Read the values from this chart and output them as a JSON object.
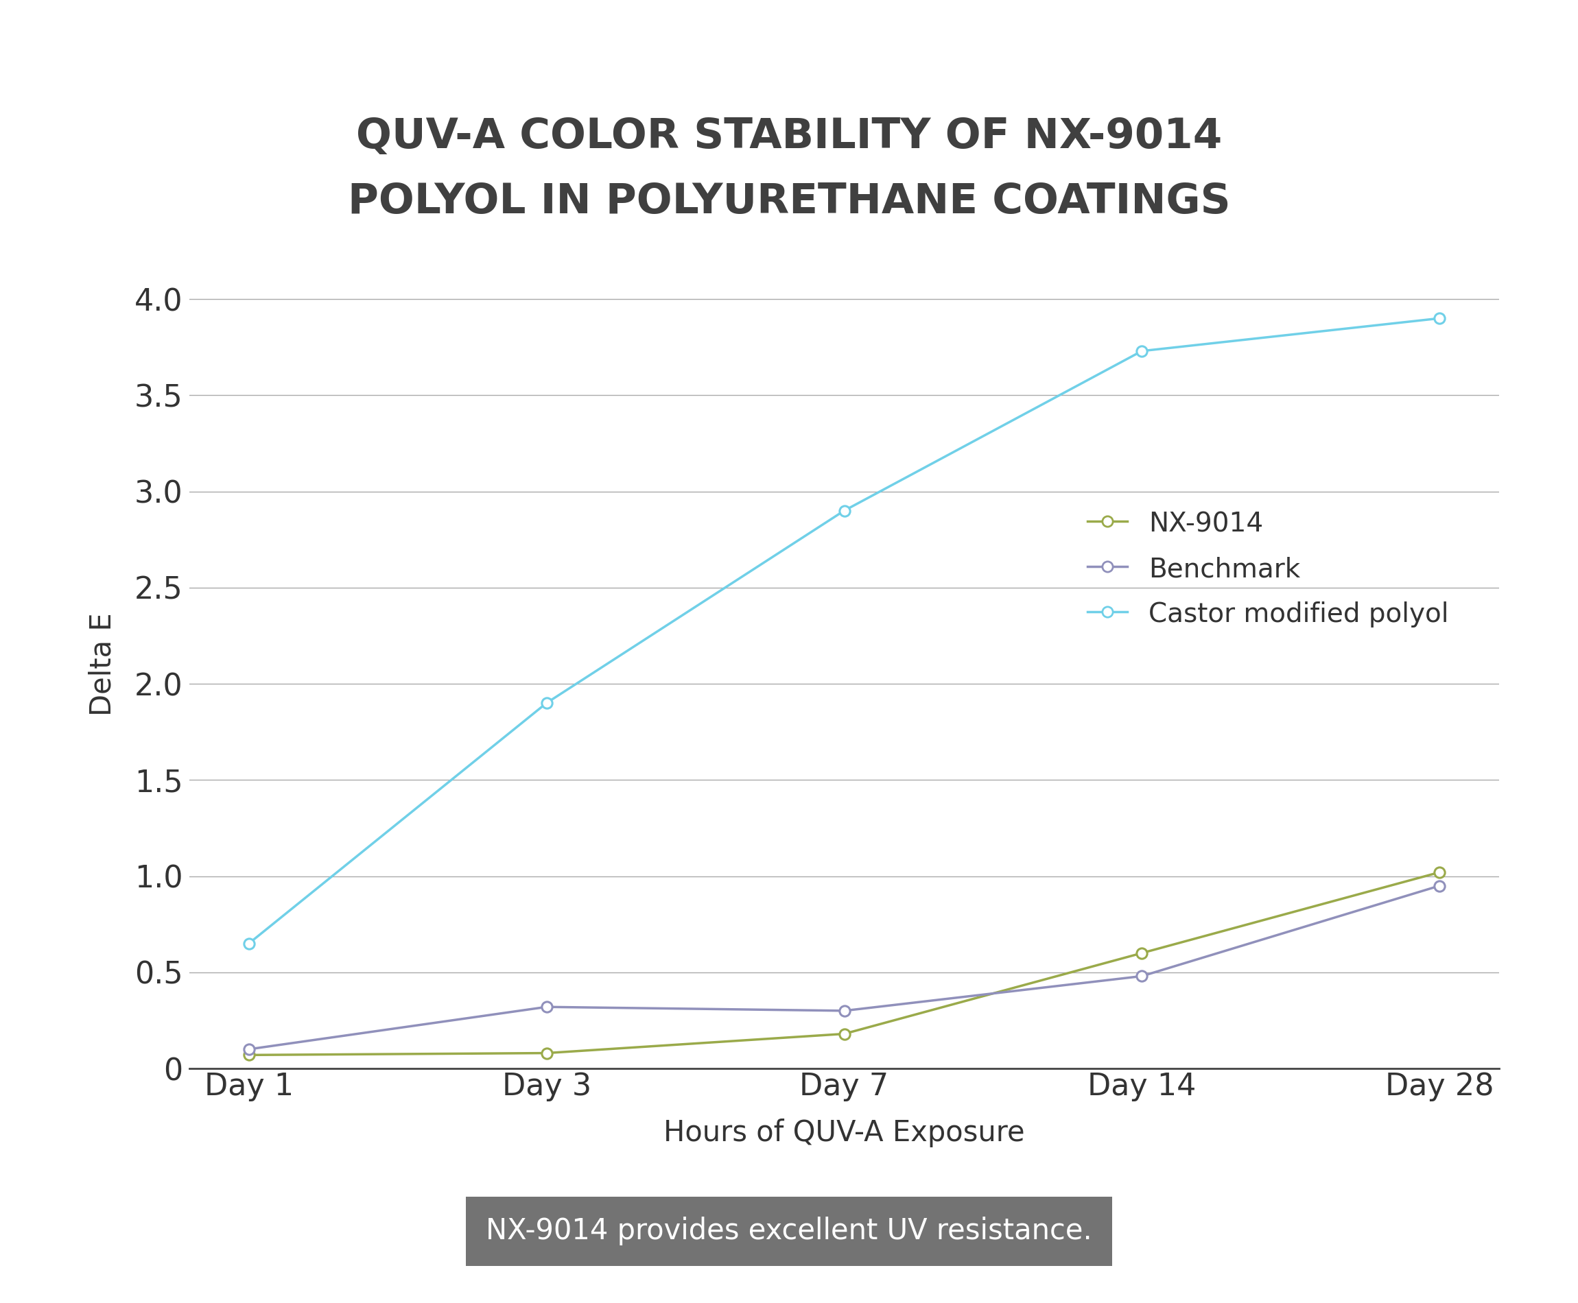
{
  "title_line1": "QUV-A COLOR STABILITY OF NX-9014",
  "title_line2": "POLYOL IN POLYURETHANE COATINGS",
  "xlabel": "Hours of QUV-A Exposure",
  "ylabel": "Delta E",
  "categories": [
    "Day 1",
    "Day 3",
    "Day 7",
    "Day 14",
    "Day 28"
  ],
  "series": {
    "NX-9014": {
      "values": [
        0.07,
        0.08,
        0.18,
        0.6,
        1.02
      ],
      "color": "#9aaa4a",
      "marker_color": "#9aaa4a"
    },
    "Benchmark": {
      "values": [
        0.1,
        0.32,
        0.3,
        0.48,
        0.95
      ],
      "color": "#9090bb",
      "marker_color": "#9090bb"
    },
    "Castor modified polyol": {
      "values": [
        0.65,
        1.9,
        2.9,
        3.73,
        3.9
      ],
      "color": "#70d0e8",
      "marker_color": "#70d0e8"
    }
  },
  "ylim": [
    0,
    4.2
  ],
  "yticks": [
    0,
    0.5,
    1.0,
    1.5,
    2.0,
    2.5,
    3.0,
    3.5,
    4.0
  ],
  "title_color": "#404040",
  "axis_label_color": "#333333",
  "tick_label_color": "#333333",
  "grid_color": "#aaaaaa",
  "background_color": "#ffffff",
  "footer_text": "NX-9014 provides excellent UV resistance.",
  "footer_bg": "#737373",
  "footer_text_color": "#ffffff",
  "title_fontsize": 44,
  "axis_label_fontsize": 30,
  "tick_fontsize": 32,
  "legend_fontsize": 28,
  "footer_fontsize": 30,
  "line_width": 2.5,
  "marker_size": 11
}
